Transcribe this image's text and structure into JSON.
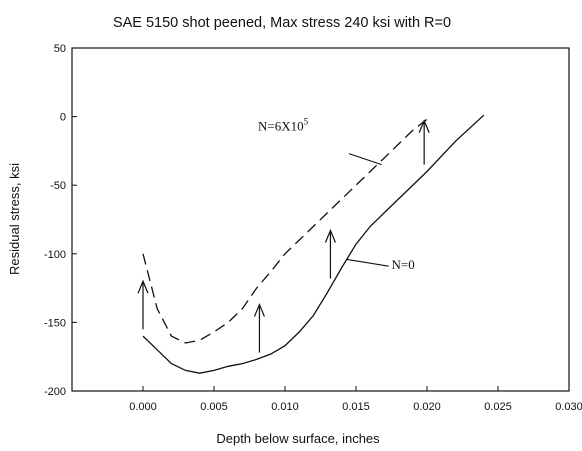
{
  "chart_data": {
    "type": "line",
    "title": "SAE 5150 shot peened, Max stress 240 ksi with R=0",
    "xlabel": "Depth below surface, inches",
    "ylabel": "Residual stress, ksi",
    "xlim": [
      -0.005,
      0.03
    ],
    "ylim": [
      -200,
      50
    ],
    "x_ticks": [
      0.0,
      0.005,
      0.01,
      0.015,
      0.02,
      0.025,
      0.03
    ],
    "x_tick_labels": [
      "0.000",
      "0.005",
      "0.010",
      "0.015",
      "0.020",
      "0.025",
      "0.030"
    ],
    "y_ticks": [
      -200,
      -150,
      -100,
      -50,
      0,
      50
    ],
    "y_tick_labels": [
      "-200",
      "-150",
      "-100",
      "-50",
      "0",
      "50"
    ],
    "grid": false,
    "series": [
      {
        "name": "N=0",
        "style": "solid",
        "x": [
          0.0,
          0.001,
          0.002,
          0.003,
          0.004,
          0.005,
          0.006,
          0.007,
          0.008,
          0.009,
          0.01,
          0.011,
          0.012,
          0.013,
          0.014,
          0.015,
          0.016,
          0.018,
          0.02,
          0.022,
          0.024
        ],
        "y": [
          -160,
          -170,
          -180,
          -185,
          -187,
          -185,
          -182,
          -180,
          -177,
          -173,
          -167,
          -157,
          -145,
          -128,
          -110,
          -93,
          -80,
          -60,
          -40,
          -18,
          1
        ]
      },
      {
        "name": "N=6X10^5",
        "style": "dashed",
        "x": [
          0.0,
          0.001,
          0.002,
          0.003,
          0.004,
          0.005,
          0.006,
          0.007,
          0.008,
          0.009,
          0.01,
          0.011,
          0.012,
          0.013,
          0.014,
          0.015,
          0.016,
          0.017,
          0.018,
          0.019,
          0.02
        ],
        "y": [
          -100,
          -140,
          -160,
          -165,
          -163,
          -157,
          -150,
          -140,
          -125,
          -113,
          -100,
          -90,
          -80,
          -70,
          -60,
          -50,
          -40,
          -30,
          -20,
          -10,
          -2
        ]
      }
    ],
    "annotations": [
      {
        "text": "N=6X10",
        "superscript": "5",
        "x": 0.0081,
        "y": -10,
        "leader_from": [
          0.0145,
          -27
        ],
        "leader_to": [
          0.0168,
          -35
        ]
      },
      {
        "text": "N=0",
        "x": 0.0175,
        "y": -111,
        "leader_from": [
          0.0173,
          -109
        ],
        "leader_to": [
          0.0143,
          -104
        ]
      }
    ],
    "arrows": [
      {
        "x": 0.0,
        "y_from": -155,
        "y_to": -120
      },
      {
        "x": 0.0082,
        "y_from": -172,
        "y_to": -137
      },
      {
        "x": 0.0132,
        "y_from": -118,
        "y_to": -83
      },
      {
        "x": 0.0198,
        "y_from": -35,
        "y_to": -3
      }
    ]
  }
}
